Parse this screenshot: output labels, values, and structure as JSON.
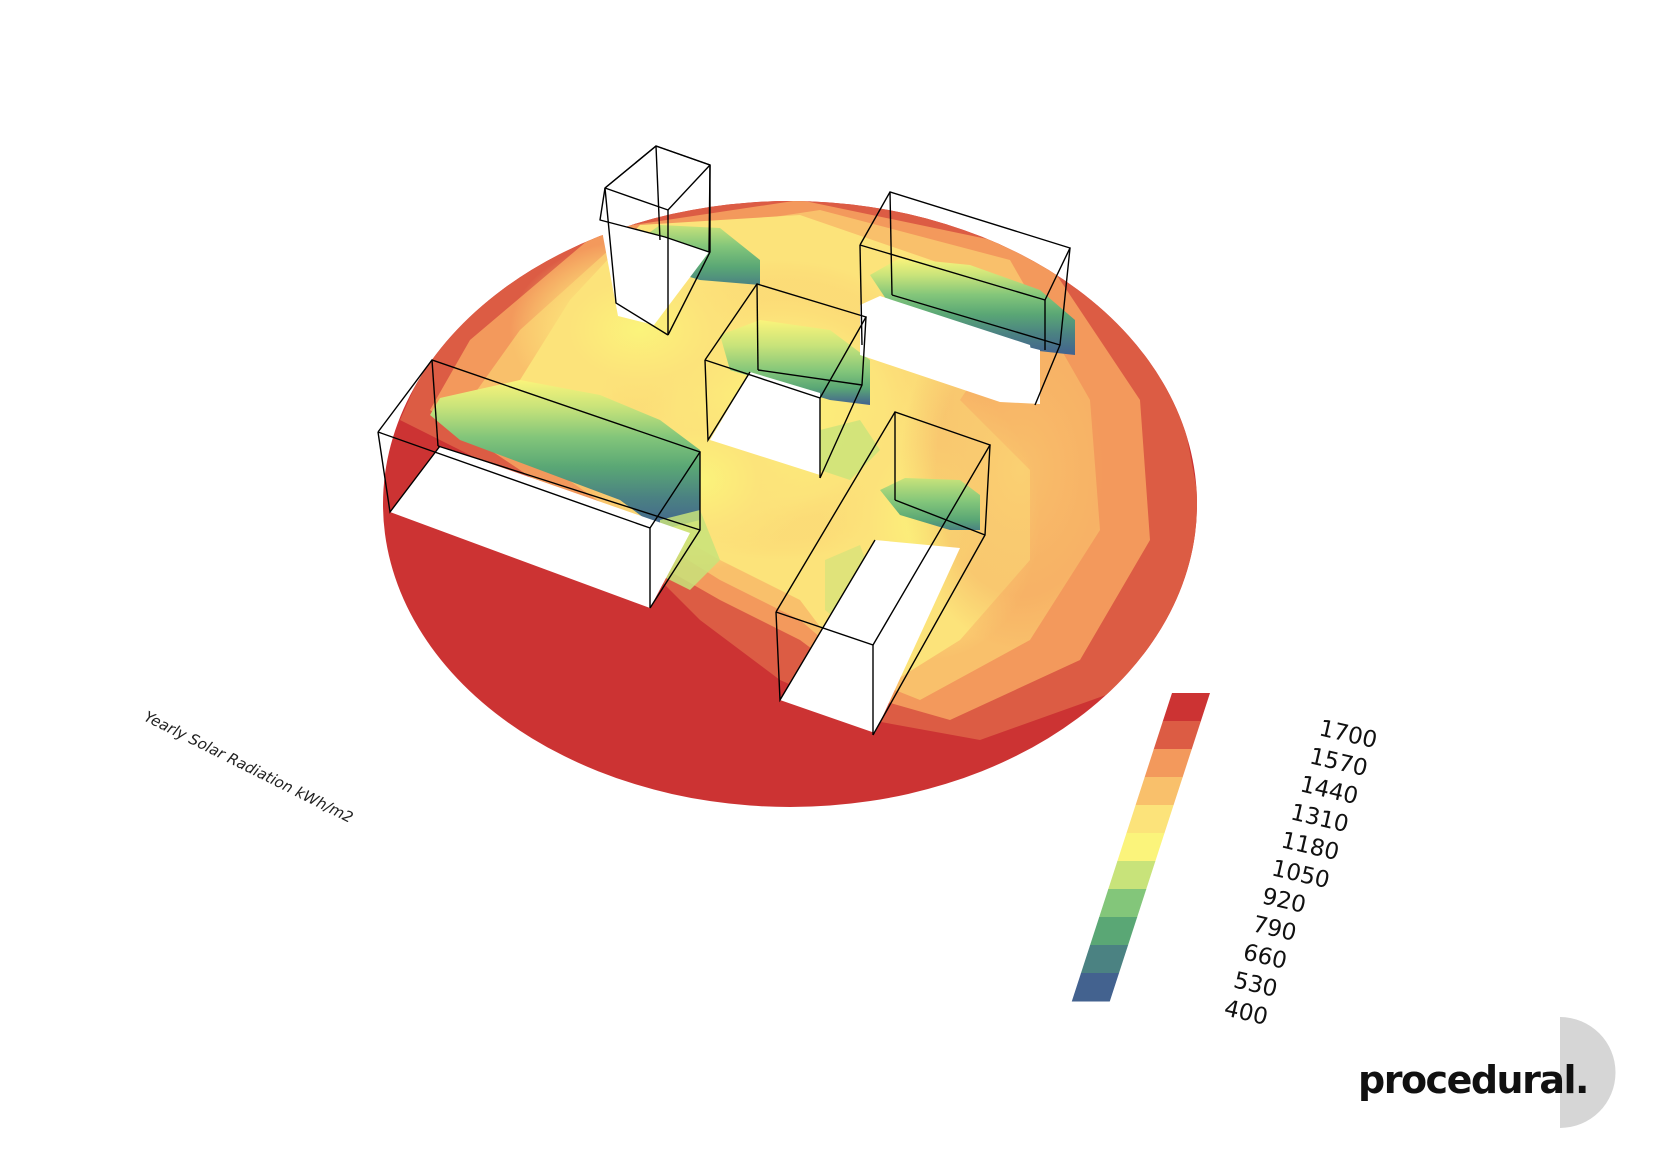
{
  "diagram": {
    "title": "Yearly Solar Radiation kWh/m2"
  },
  "legend": {
    "labels": [
      "1700",
      "1570",
      "1440",
      "1310",
      "1180",
      "1050",
      "920",
      "790",
      "660",
      "530",
      "400"
    ],
    "colors": [
      "#cc3333",
      "#dc5c44",
      "#f3995c",
      "#f9c06b",
      "#fce37a",
      "#fbf47b",
      "#c8e37a",
      "#83c67a",
      "#5aa775",
      "#4b8282",
      "#43628f"
    ]
  },
  "buildings": [
    {
      "name": "building-north-small"
    },
    {
      "name": "building-north-east"
    },
    {
      "name": "building-center"
    },
    {
      "name": "building-west-long"
    },
    {
      "name": "building-south-long"
    }
  ],
  "brand": {
    "logo_text": "procedural."
  }
}
